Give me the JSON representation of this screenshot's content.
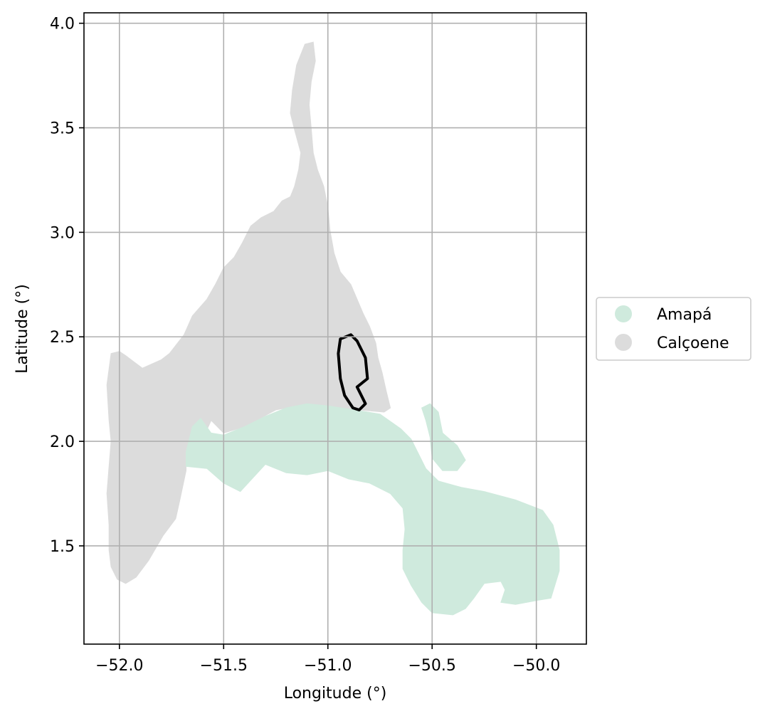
{
  "chart_data": {
    "type": "map",
    "title": "",
    "xlabel": "Longitude (°)",
    "ylabel": "Latitude (°)",
    "xlim": [
      -52.17,
      -49.76
    ],
    "ylim": [
      1.03,
      4.05
    ],
    "grid": true,
    "x_ticks": [
      {
        "value": -52.0,
        "label": "−52.0"
      },
      {
        "value": -51.5,
        "label": "−51.5"
      },
      {
        "value": -51.0,
        "label": "−51.0"
      },
      {
        "value": -50.5,
        "label": "−50.5"
      },
      {
        "value": -50.0,
        "label": "−50.0"
      }
    ],
    "y_ticks": [
      {
        "value": 1.5,
        "label": "1.5"
      },
      {
        "value": 2.0,
        "label": "2.0"
      },
      {
        "value": 2.5,
        "label": "2.5"
      },
      {
        "value": 3.0,
        "label": "3.0"
      },
      {
        "value": 3.5,
        "label": "3.5"
      },
      {
        "value": 4.0,
        "label": "4.0"
      }
    ],
    "legend": {
      "placement": "center-right-outside",
      "entries": [
        {
          "label": "Amapá",
          "color": "#cfeadd"
        },
        {
          "label": "Calçoene",
          "color": "#dcdcdc"
        }
      ]
    },
    "regions": [
      {
        "name": "Calçoene",
        "color": "#dcdcdc",
        "coords": [
          [
            -51.11,
            3.9
          ],
          [
            -51.07,
            3.91
          ],
          [
            -51.06,
            3.82
          ],
          [
            -51.08,
            3.72
          ],
          [
            -51.09,
            3.61
          ],
          [
            -51.08,
            3.5
          ],
          [
            -51.07,
            3.38
          ],
          [
            -51.05,
            3.3
          ],
          [
            -51.02,
            3.22
          ],
          [
            -51.0,
            3.12
          ],
          [
            -50.99,
            3.01
          ],
          [
            -50.97,
            2.9
          ],
          [
            -50.94,
            2.81
          ],
          [
            -50.89,
            2.75
          ],
          [
            -50.86,
            2.68
          ],
          [
            -50.83,
            2.61
          ],
          [
            -50.8,
            2.55
          ],
          [
            -50.77,
            2.47
          ],
          [
            -50.76,
            2.4
          ],
          [
            -50.74,
            2.33
          ],
          [
            -50.72,
            2.24
          ],
          [
            -50.7,
            2.16
          ],
          [
            -50.73,
            2.14
          ],
          [
            -50.85,
            2.15
          ],
          [
            -51.0,
            2.17
          ],
          [
            -51.1,
            2.18
          ],
          [
            -51.25,
            2.15
          ],
          [
            -51.4,
            2.07
          ],
          [
            -51.5,
            2.04
          ],
          [
            -51.56,
            2.1
          ],
          [
            -51.61,
            1.99
          ],
          [
            -51.68,
            1.95
          ],
          [
            -51.68,
            1.86
          ],
          [
            -51.71,
            1.72
          ],
          [
            -51.73,
            1.63
          ],
          [
            -51.79,
            1.55
          ],
          [
            -51.86,
            1.43
          ],
          [
            -51.92,
            1.35
          ],
          [
            -51.97,
            1.32
          ],
          [
            -52.01,
            1.34
          ],
          [
            -52.04,
            1.4
          ],
          [
            -52.05,
            1.48
          ],
          [
            -52.05,
            1.6
          ],
          [
            -52.06,
            1.75
          ],
          [
            -52.05,
            1.88
          ],
          [
            -52.04,
            2.0
          ],
          [
            -52.05,
            2.1
          ],
          [
            -52.06,
            2.27
          ],
          [
            -52.04,
            2.42
          ],
          [
            -52.0,
            2.43
          ],
          [
            -51.97,
            2.41
          ],
          [
            -51.89,
            2.35
          ],
          [
            -51.8,
            2.39
          ],
          [
            -51.76,
            2.42
          ],
          [
            -51.69,
            2.51
          ],
          [
            -51.65,
            2.6
          ],
          [
            -51.58,
            2.68
          ],
          [
            -51.54,
            2.75
          ],
          [
            -51.5,
            2.83
          ],
          [
            -51.45,
            2.88
          ],
          [
            -51.41,
            2.95
          ],
          [
            -51.37,
            3.03
          ],
          [
            -51.32,
            3.07
          ],
          [
            -51.26,
            3.1
          ],
          [
            -51.22,
            3.15
          ],
          [
            -51.18,
            3.17
          ],
          [
            -51.16,
            3.22
          ],
          [
            -51.14,
            3.3
          ],
          [
            -51.13,
            3.38
          ],
          [
            -51.16,
            3.49
          ],
          [
            -51.18,
            3.57
          ],
          [
            -51.17,
            3.68
          ],
          [
            -51.15,
            3.8
          ]
        ]
      },
      {
        "name": "Amapá",
        "color": "#cfeadd",
        "coords": [
          [
            -51.68,
            1.95
          ],
          [
            -51.65,
            2.07
          ],
          [
            -51.61,
            2.11
          ],
          [
            -51.56,
            2.04
          ],
          [
            -51.5,
            2.03
          ],
          [
            -51.4,
            2.07
          ],
          [
            -51.3,
            2.12
          ],
          [
            -51.2,
            2.16
          ],
          [
            -51.1,
            2.18
          ],
          [
            -51.0,
            2.17
          ],
          [
            -50.87,
            2.15
          ],
          [
            -50.75,
            2.13
          ],
          [
            -50.65,
            2.06
          ],
          [
            -50.6,
            2.01
          ],
          [
            -50.57,
            1.95
          ],
          [
            -50.53,
            1.87
          ],
          [
            -50.47,
            1.81
          ],
          [
            -50.36,
            1.78
          ],
          [
            -50.25,
            1.76
          ],
          [
            -50.1,
            1.72
          ],
          [
            -49.97,
            1.67
          ],
          [
            -49.92,
            1.6
          ],
          [
            -49.89,
            1.48
          ],
          [
            -49.89,
            1.38
          ],
          [
            -49.93,
            1.25
          ],
          [
            -49.99,
            1.24
          ],
          [
            -50.1,
            1.22
          ],
          [
            -50.17,
            1.23
          ],
          [
            -50.15,
            1.29
          ],
          [
            -50.17,
            1.33
          ],
          [
            -50.25,
            1.32
          ],
          [
            -50.3,
            1.25
          ],
          [
            -50.34,
            1.2
          ],
          [
            -50.4,
            1.17
          ],
          [
            -50.5,
            1.18
          ],
          [
            -50.55,
            1.23
          ],
          [
            -50.6,
            1.31
          ],
          [
            -50.64,
            1.39
          ],
          [
            -50.64,
            1.48
          ],
          [
            -50.63,
            1.58
          ],
          [
            -50.64,
            1.68
          ],
          [
            -50.7,
            1.75
          ],
          [
            -50.8,
            1.8
          ],
          [
            -50.9,
            1.82
          ],
          [
            -51.0,
            1.86
          ],
          [
            -51.1,
            1.84
          ],
          [
            -51.2,
            1.85
          ],
          [
            -51.3,
            1.89
          ],
          [
            -51.42,
            1.76
          ],
          [
            -51.5,
            1.8
          ],
          [
            -51.58,
            1.87
          ],
          [
            -51.68,
            1.88
          ]
        ]
      },
      {
        "name": "Amapá",
        "color": "#cfeadd",
        "coords": [
          [
            -50.55,
            2.16
          ],
          [
            -50.51,
            2.18
          ],
          [
            -50.47,
            2.14
          ],
          [
            -50.45,
            2.04
          ],
          [
            -50.38,
            1.98
          ],
          [
            -50.34,
            1.91
          ],
          [
            -50.38,
            1.86
          ],
          [
            -50.45,
            1.86
          ],
          [
            -50.5,
            1.92
          ],
          [
            -50.51,
            2.02
          ],
          [
            -50.53,
            2.1
          ]
        ]
      }
    ],
    "highlight_outline": {
      "coords": [
        [
          -50.94,
          2.49
        ],
        [
          -50.89,
          2.51
        ],
        [
          -50.86,
          2.48
        ],
        [
          -50.82,
          2.4
        ],
        [
          -50.81,
          2.3
        ],
        [
          -50.86,
          2.26
        ],
        [
          -50.82,
          2.18
        ],
        [
          -50.85,
          2.15
        ],
        [
          -50.88,
          2.16
        ],
        [
          -50.92,
          2.22
        ],
        [
          -50.94,
          2.3
        ],
        [
          -50.95,
          2.42
        ]
      ],
      "color": "#000000"
    }
  }
}
